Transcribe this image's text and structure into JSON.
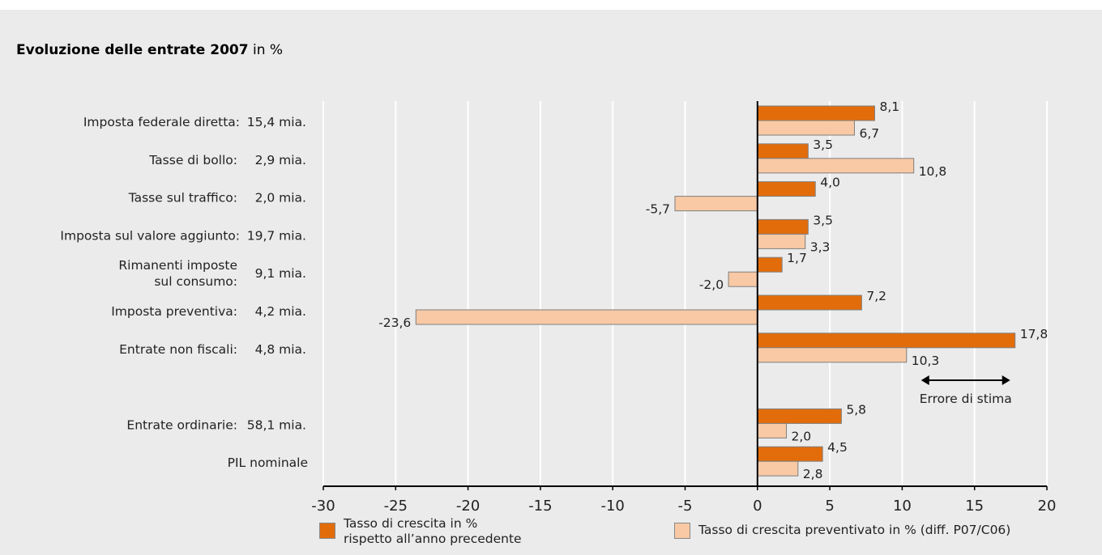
{
  "title": {
    "bold": "Evoluzione delle entrate 2007",
    "rest": " in %"
  },
  "chart_data": {
    "type": "bar",
    "orientation": "horizontal",
    "title": "Evoluzione delle entrate 2007 in %",
    "categories": [
      {
        "name": "Imposta federale diretta:",
        "amount": "15,4 mia."
      },
      {
        "name": "Tasse di bollo:",
        "amount": "2,9 mia."
      },
      {
        "name": "Tasse sul traffico:",
        "amount": "2,0 mia."
      },
      {
        "name": "Imposta sul valore aggiunto:",
        "amount": "19,7 mia."
      },
      {
        "name": "Rimanenti imposte\nsul consumo:",
        "amount": "9,1 mia."
      },
      {
        "name": "Imposta preventiva:",
        "amount": "4,2 mia."
      },
      {
        "name": "Entrate non fiscali:",
        "amount": "4,8 mia."
      },
      {
        "name": "",
        "amount": ""
      },
      {
        "name": "Entrate ordinarie:",
        "amount": "58,1 mia."
      },
      {
        "name": "PIL nominale",
        "amount": ""
      }
    ],
    "series": [
      {
        "name": "Tasso di crescita in %\nrispetto all’anno precedente",
        "color": "#e36c0a",
        "values": [
          8.1,
          3.5,
          4.0,
          3.5,
          1.7,
          7.2,
          17.8,
          null,
          5.8,
          4.5
        ],
        "labels": [
          "8,1",
          "3,5",
          "4,0",
          "3,5",
          "1,7",
          "7,2",
          "17,8",
          "",
          "5,8",
          "4,5"
        ]
      },
      {
        "name": "Tasso di crescita preventivato in % (diff. P07/C06)",
        "color": "#f8c9a4",
        "values": [
          6.7,
          10.8,
          -5.7,
          3.3,
          -2.0,
          -23.6,
          10.3,
          null,
          2.0,
          2.8
        ],
        "labels": [
          "6,7",
          "10,8",
          "-5,7",
          "3,3",
          "-2,0",
          "-23,6",
          "10,3",
          "",
          "2,0",
          "2,8"
        ]
      }
    ],
    "xlim": [
      -30,
      20
    ],
    "xticks": [
      -30,
      -25,
      -20,
      -15,
      -10,
      -5,
      0,
      5,
      10,
      15,
      20
    ],
    "grid": true,
    "annotation": {
      "text": "Errore di stima",
      "from": 10.3,
      "to": 17.8
    },
    "legend_position": "bottom"
  },
  "colors": {
    "panel": "#ebebeb",
    "grid": "#ffffff",
    "axis": "#000000",
    "bar_border": "#7f7f7f"
  }
}
